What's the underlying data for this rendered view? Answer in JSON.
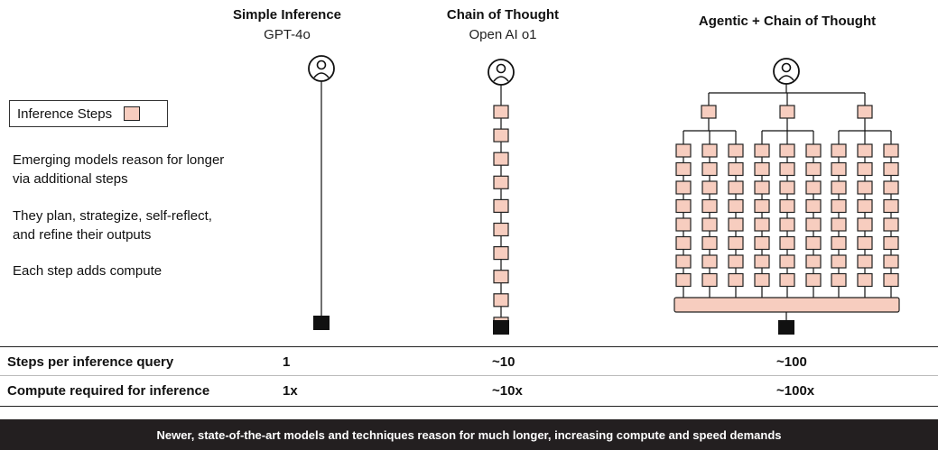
{
  "columns": [
    {
      "title": "Simple Inference",
      "subtitle": "GPT-4o"
    },
    {
      "title": "Chain of Thought",
      "subtitle": "Open AI o1"
    },
    {
      "title": "Agentic + Chain of Thought",
      "subtitle": ""
    }
  ],
  "legend": {
    "label": "Inference Steps"
  },
  "paragraphs": [
    "Emerging models reason for longer via additional steps",
    "They plan, strategize, self-reflect, and refine their outputs",
    "Each step adds compute"
  ],
  "table": {
    "rows": [
      {
        "label": "Steps per inference query",
        "values": [
          "1",
          "~10",
          "~100"
        ]
      },
      {
        "label": "Compute required for inference",
        "values": [
          "1x",
          "~10x",
          "~100x"
        ]
      }
    ]
  },
  "footer": {
    "text": "Newer, state-of-the-art models and techniques reason for much longer, increasing compute and speed demands"
  },
  "colors": {
    "step_fill": "#f7cdbf",
    "output_fill": "#111111",
    "footer_bg": "#231f20"
  },
  "icons": {
    "user": "user-circle-icon"
  }
}
